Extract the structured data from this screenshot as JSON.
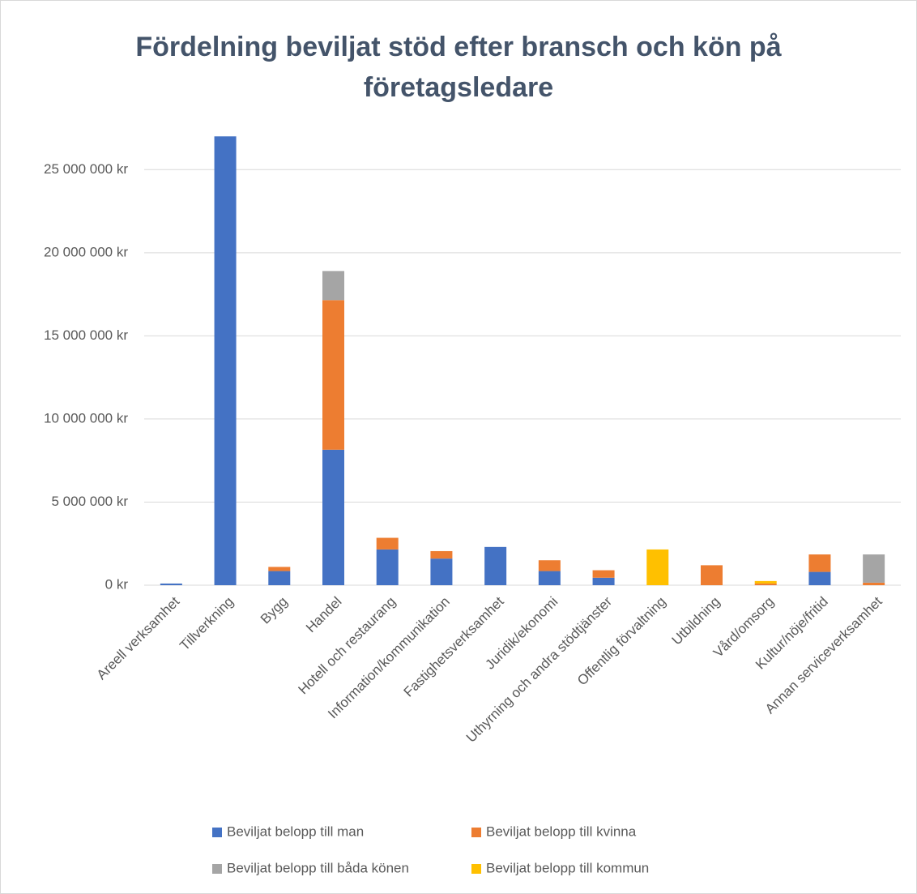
{
  "chart_data": {
    "type": "stacked_bar",
    "title": "Fördelning beviljat stöd efter bransch och kön på företagsledare",
    "categories": [
      "Areell verksamhet",
      "Tillverkning",
      "Bygg",
      "Handel",
      "Hotell och restaurang",
      "Information/kommunikation",
      "Fastighetsverksamhet",
      "Juridik/ekonomi",
      "Uthyrning och andra stödtjänster",
      "Offentlig förvaltning",
      "Utbildning",
      "Vård/omsorg",
      "Kultur/nöje/fritid",
      "Annan serviceverksamhet"
    ],
    "series": [
      {
        "name": "Beviljat belopp till man",
        "color": "#4472c4",
        "values": [
          100000,
          27000000,
          850000,
          8150000,
          2150000,
          1600000,
          2300000,
          850000,
          450000,
          null,
          null,
          null,
          800000,
          null
        ]
      },
      {
        "name": "Beviljat belopp till kvinna",
        "color": "#ed7d31",
        "values": [
          null,
          null,
          250000,
          9000000,
          700000,
          450000,
          null,
          650000,
          450000,
          null,
          1200000,
          100000,
          1050000,
          150000
        ]
      },
      {
        "name": "Beviljat belopp till båda könen",
        "color": "#a5a5a5",
        "values": [
          null,
          null,
          null,
          1750000,
          null,
          null,
          null,
          null,
          null,
          null,
          null,
          null,
          null,
          1700000
        ]
      },
      {
        "name": "Beviljat belopp till kommun",
        "color": "#ffc000",
        "values": [
          null,
          null,
          null,
          null,
          null,
          null,
          null,
          null,
          null,
          2150000,
          null,
          150000,
          null,
          null
        ]
      }
    ],
    "ylim": [
      0,
      27500000
    ],
    "yticks": [
      {
        "value": 0,
        "label": "0 kr"
      },
      {
        "value": 5000000,
        "label": "5 000 000 kr"
      },
      {
        "value": 10000000,
        "label": "10 000 000 kr"
      },
      {
        "value": 15000000,
        "label": "15 000 000 kr"
      },
      {
        "value": 20000000,
        "label": "20 000 000 kr"
      },
      {
        "value": 25000000,
        "label": "25 000 000 kr"
      }
    ],
    "grid": true,
    "legend": "bottom"
  }
}
